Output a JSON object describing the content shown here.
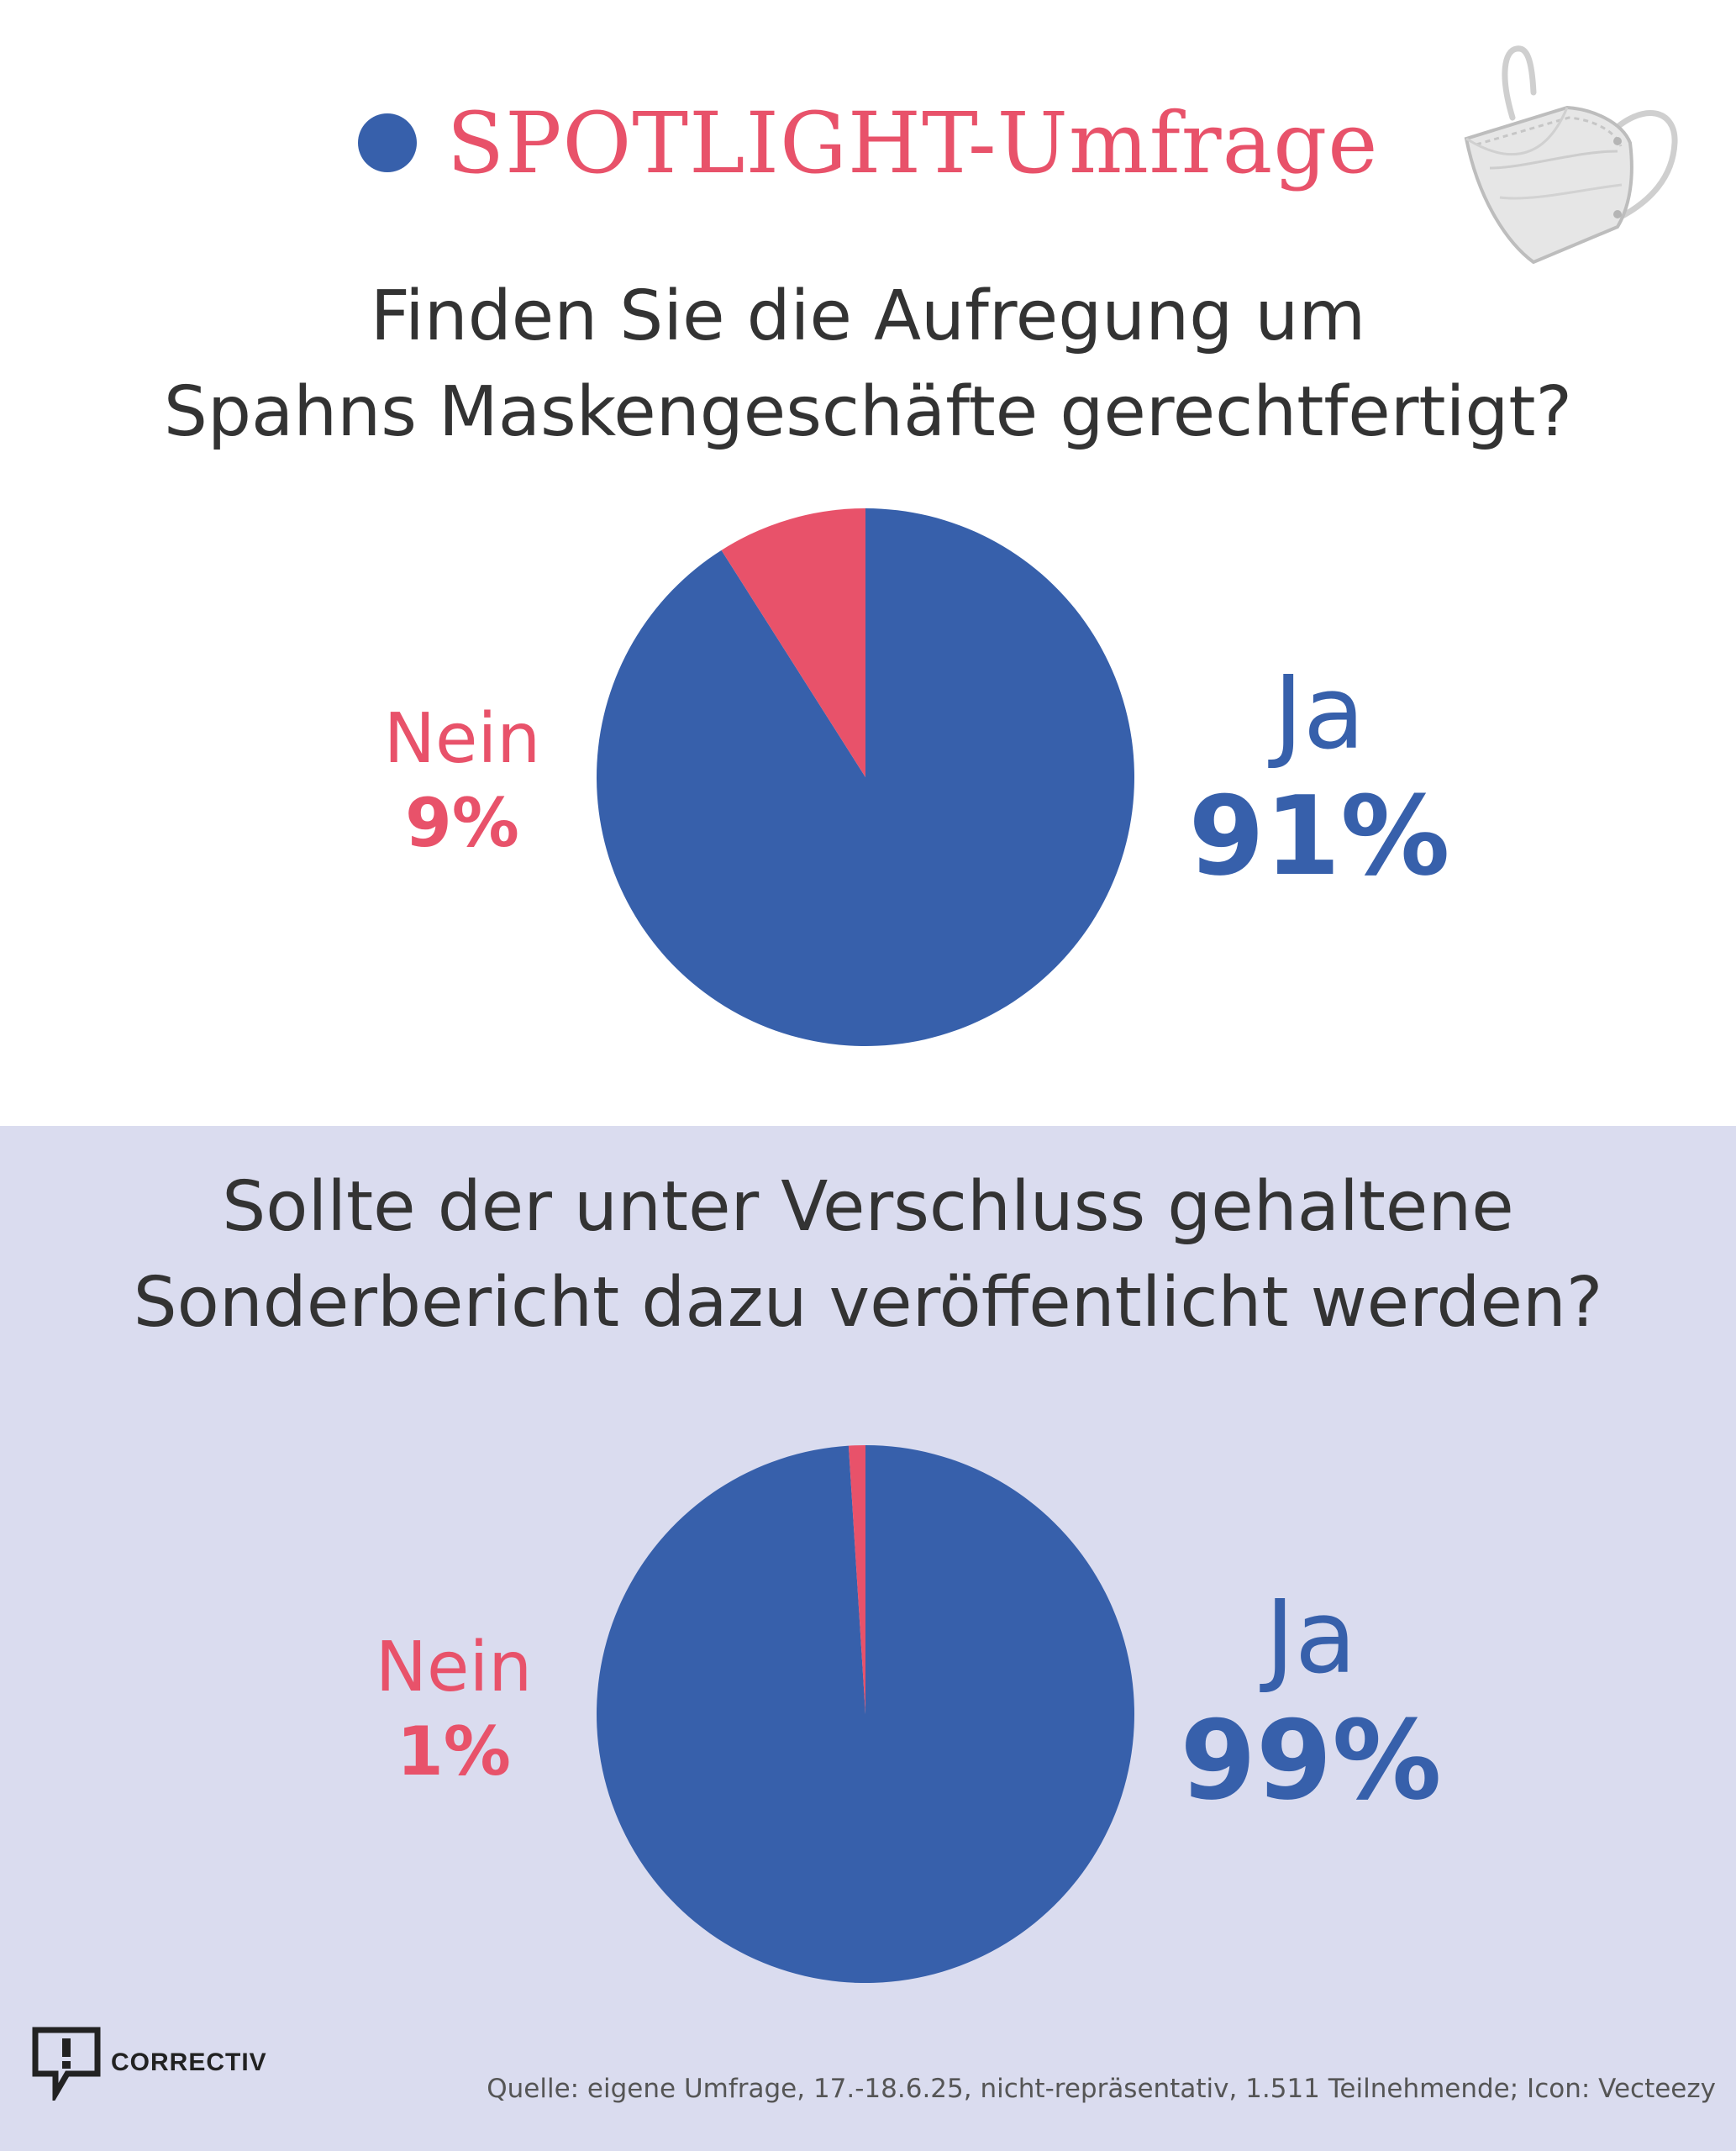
{
  "header": {
    "title": "SPOTLIGHT-Umfrage",
    "dot_color": "#3760ab",
    "title_color": "#e8526a",
    "icon": "face-mask-icon"
  },
  "colors": {
    "ja": "#3760ab",
    "nein": "#e8526a",
    "lower_band": "#dadcef"
  },
  "chart_data": [
    {
      "type": "pie",
      "title_lines": [
        "Finden Sie die Aufregung um",
        "Spahns Maskengeschäfte gerechtfertigt?"
      ],
      "slices": [
        {
          "label": "Ja",
          "value": 91,
          "value_label": "91%"
        },
        {
          "label": "Nein",
          "value": 9,
          "value_label": "9%"
        }
      ]
    },
    {
      "type": "pie",
      "title_lines": [
        "Sollte der unter Verschluss gehaltene",
        "Sonderbericht dazu veröffentlicht werden?"
      ],
      "slices": [
        {
          "label": "Ja",
          "value": 99,
          "value_label": "99%"
        },
        {
          "label": "Nein",
          "value": 1,
          "value_label": "1%"
        }
      ]
    }
  ],
  "footer": {
    "logo_text": "CORRECTIV",
    "source": "Quelle: eigene Umfrage, 17.-18.6.25, nicht-repräsentativ, 1.511 Teilnehmende; Icon: Vecteezy"
  }
}
